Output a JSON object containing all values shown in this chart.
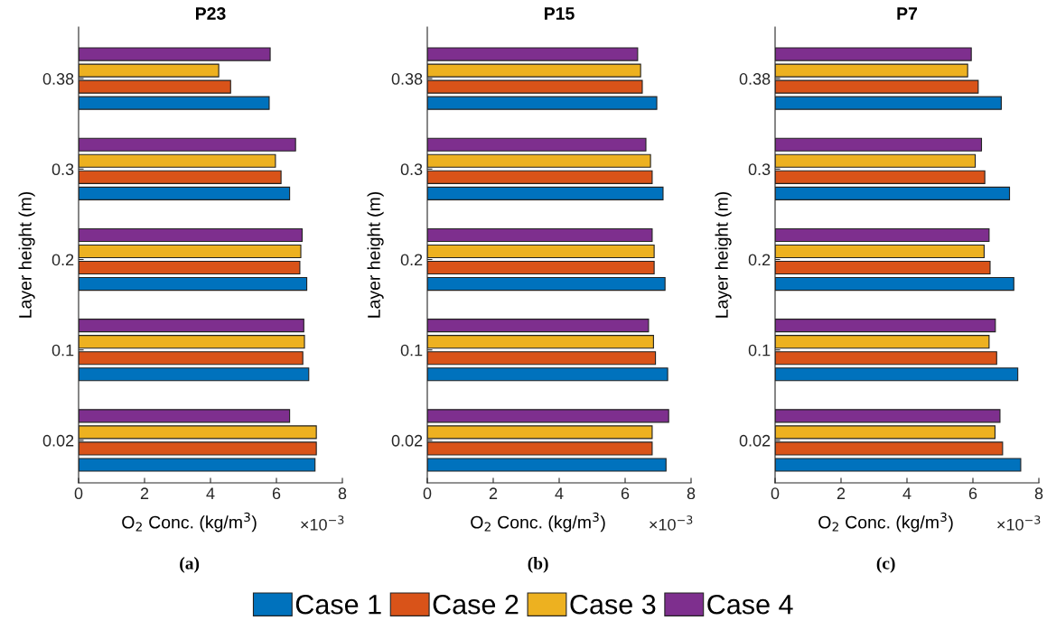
{
  "chart_data": [
    {
      "type": "bar",
      "orientation": "horizontal",
      "title": "P23",
      "xlabel": "O$_{2}$ Conc. (kg/m$^{3}$)",
      "ylabel": "Layer height (m)",
      "categories": [
        "0.38",
        "0.3",
        "0.2",
        "0.1",
        "0.02"
      ],
      "xlim": [
        0,
        8
      ],
      "xticks": [
        0,
        2,
        4,
        6,
        8
      ],
      "legend": "bottom",
      "annotations": [
        "×10$^{−3}$",
        "(a)"
      ],
      "series": [
        {
          "name": "Case 1",
          "color": "#0072bd",
          "values": [
            5.78,
            6.4,
            6.92,
            6.98,
            7.17
          ]
        },
        {
          "name": "Case 2",
          "color": "#d95319",
          "values": [
            4.61,
            6.14,
            6.71,
            6.8,
            7.21
          ]
        },
        {
          "name": "Case 3",
          "color": "#edb120",
          "values": [
            4.25,
            5.97,
            6.74,
            6.85,
            7.21
          ]
        },
        {
          "name": "Case 4",
          "color": "#7e2f8e",
          "values": [
            5.81,
            6.58,
            6.78,
            6.83,
            6.4
          ]
        }
      ]
    },
    {
      "type": "bar",
      "orientation": "horizontal",
      "title": "P15",
      "xlabel": "O$_{2}$ Conc. (kg/m$^{3}$)",
      "ylabel": "Layer height (m)",
      "categories": [
        "0.38",
        "0.3",
        "0.2",
        "0.1",
        "0.02"
      ],
      "xlim": [
        0,
        8
      ],
      "xticks": [
        0,
        2,
        4,
        6,
        8
      ],
      "annotations": [
        "×10$^{−3}$",
        "(b)"
      ],
      "series": [
        {
          "color": "#0072bd",
          "values": [
            6.96,
            7.15,
            7.21,
            7.29,
            7.24
          ]
        },
        {
          "color": "#d95319",
          "values": [
            6.52,
            6.82,
            6.88,
            6.92,
            6.82
          ]
        },
        {
          "color": "#edb120",
          "values": [
            6.47,
            6.77,
            6.88,
            6.86,
            6.82
          ]
        },
        {
          "color": "#7e2f8e",
          "values": [
            6.38,
            6.63,
            6.82,
            6.71,
            7.32
          ]
        }
      ]
    },
    {
      "type": "bar",
      "orientation": "horizontal",
      "title": "P7",
      "xlabel": "O$_{2}$ Conc. (kg/m$^{3}$)",
      "ylabel": "Layer height (m)",
      "categories": [
        "0.38",
        "0.3",
        "0.2",
        "0.1",
        "0.02"
      ],
      "xlim": [
        0,
        8
      ],
      "xticks": [
        0,
        2,
        4,
        6,
        8
      ],
      "annotations": [
        "×10$^{−3}$",
        "(c)"
      ],
      "series": [
        {
          "color": "#0072bd",
          "values": [
            6.86,
            7.11,
            7.24,
            7.36,
            7.45
          ]
        },
        {
          "color": "#d95319",
          "values": [
            6.16,
            6.36,
            6.52,
            6.72,
            6.9
          ]
        },
        {
          "color": "#edb120",
          "values": [
            5.84,
            6.07,
            6.34,
            6.49,
            6.67
          ]
        },
        {
          "color": "#7e2f8e",
          "values": [
            5.95,
            6.26,
            6.49,
            6.68,
            6.82
          ]
        }
      ]
    }
  ]
}
